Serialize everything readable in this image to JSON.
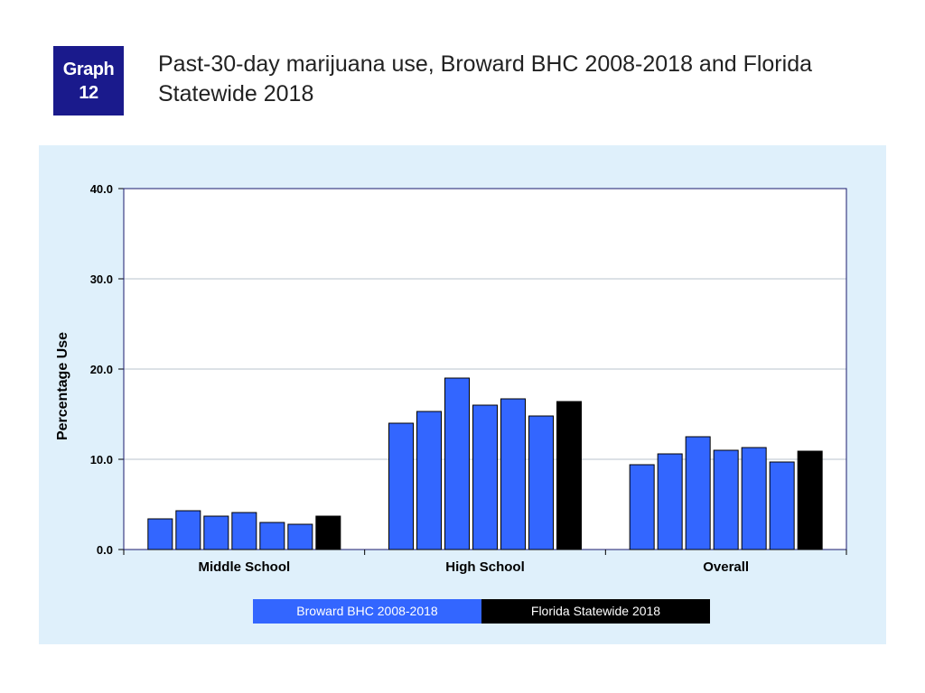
{
  "badge": {
    "line1": "Graph",
    "line2": "12"
  },
  "title": "Past-30-day marijuana use, Broward BHC 2008-2018 and Florida Statewide 2018",
  "colors": {
    "broward": "#3366ff",
    "florida": "#000000",
    "panel": "#dff0fb",
    "badge": "#1a1a8c"
  },
  "chart_data": {
    "type": "bar",
    "title": "Past-30-day marijuana use, Broward BHC 2008-2018 and Florida Statewide 2018",
    "xlabel": "",
    "ylabel": "Percentage Use",
    "ylim": [
      0,
      40
    ],
    "yticks": [
      "0.0",
      "10.0",
      "20.0",
      "30.0",
      "40.0"
    ],
    "categories": [
      "Middle School",
      "High School",
      "Overall"
    ],
    "series": [
      {
        "name": "Broward BHC 2008-2018",
        "color": "#3366ff",
        "values_by_category": [
          [
            3.4,
            4.3,
            3.7,
            4.1,
            3.0,
            2.8
          ],
          [
            14.0,
            15.3,
            19.0,
            16.0,
            16.7,
            14.8
          ],
          [
            9.4,
            10.6,
            12.5,
            11.0,
            11.3,
            9.7
          ]
        ]
      },
      {
        "name": "Florida Statewide 2018",
        "color": "#000000",
        "values_by_category": [
          [
            3.7
          ],
          [
            16.4
          ],
          [
            10.9
          ]
        ]
      }
    ],
    "legend": {
      "position": "bottom",
      "entries": [
        "Broward BHC 2008-2018",
        "Florida Statewide 2018"
      ]
    },
    "grid": true
  }
}
